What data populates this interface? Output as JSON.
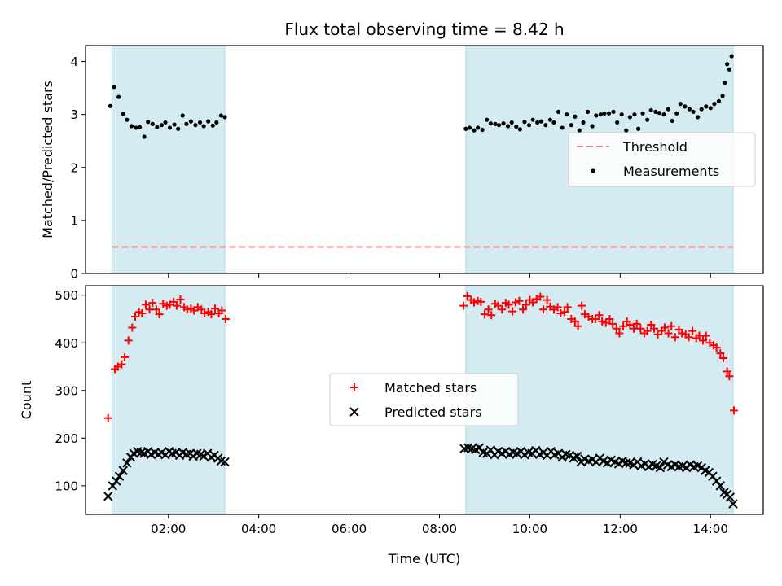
{
  "chart_data": [
    {
      "type": "scatter",
      "title": "Flux total observing time = 8.42 h",
      "xlabel": "",
      "ylabel": "Matched/Predicted stars",
      "xlim": [
        "00:10",
        "15:10"
      ],
      "ylim": [
        0,
        4.3
      ],
      "yticks": [
        0,
        1,
        2,
        3,
        4
      ],
      "xticks": [
        "02:00",
        "04:00",
        "06:00",
        "08:00",
        "10:00",
        "12:00",
        "14:00"
      ],
      "xtick_labels_shown": false,
      "grid": false,
      "legend_position": "center-right",
      "shaded_intervals": [
        [
          "00:45",
          "03:15"
        ],
        [
          "08:35",
          "14:30"
        ]
      ],
      "series": [
        {
          "name": "Threshold",
          "style": "dashed line",
          "color": "#f08080",
          "x": [
            "00:45",
            "14:30"
          ],
          "y": [
            0.5,
            0.5
          ]
        },
        {
          "name": "Measurements",
          "style": "dot",
          "color": "#000000",
          "x": [
            "00:43",
            "00:48",
            "00:54",
            "01:00",
            "01:05",
            "01:11",
            "01:17",
            "01:22",
            "01:28",
            "01:33",
            "01:39",
            "01:45",
            "01:51",
            "01:56",
            "02:02",
            "02:08",
            "02:13",
            "02:19",
            "02:24",
            "02:30",
            "02:36",
            "02:42",
            "02:47",
            "02:53",
            "02:59",
            "03:04",
            "03:10",
            "03:15",
            "08:35",
            "08:40",
            "08:46",
            "08:51",
            "08:57",
            "09:03",
            "09:08",
            "09:14",
            "09:19",
            "09:25",
            "09:31",
            "09:36",
            "09:42",
            "09:47",
            "09:53",
            "09:59",
            "10:04",
            "10:10",
            "10:15",
            "10:21",
            "10:27",
            "10:32",
            "10:38",
            "10:43",
            "10:49",
            "10:55",
            "11:00",
            "11:06",
            "11:11",
            "11:17",
            "11:23",
            "11:28",
            "11:34",
            "11:39",
            "11:45",
            "11:51",
            "11:56",
            "12:02",
            "12:08",
            "12:13",
            "12:19",
            "12:24",
            "12:30",
            "12:36",
            "12:41",
            "12:47",
            "12:52",
            "12:58",
            "13:04",
            "13:09",
            "13:15",
            "13:20",
            "13:26",
            "13:32",
            "13:37",
            "13:43",
            "13:48",
            "13:54",
            "14:00",
            "14:05",
            "14:11",
            "14:16",
            "14:19",
            "14:22",
            "14:25",
            "14:28"
          ],
          "y": [
            3.16,
            3.52,
            3.33,
            3.01,
            2.9,
            2.78,
            2.75,
            2.76,
            2.58,
            2.86,
            2.82,
            2.76,
            2.8,
            2.85,
            2.75,
            2.81,
            2.73,
            2.98,
            2.82,
            2.87,
            2.8,
            2.85,
            2.78,
            2.87,
            2.79,
            2.85,
            2.98,
            2.95,
            2.73,
            2.75,
            2.7,
            2.75,
            2.71,
            2.9,
            2.83,
            2.82,
            2.8,
            2.83,
            2.78,
            2.85,
            2.77,
            2.72,
            2.86,
            2.8,
            2.9,
            2.85,
            2.87,
            2.8,
            2.9,
            2.85,
            3.05,
            2.75,
            3.0,
            2.8,
            2.96,
            2.7,
            2.85,
            3.05,
            2.78,
            2.98,
            3.0,
            3.02,
            3.02,
            3.05,
            2.85,
            3.0,
            2.7,
            2.95,
            3.0,
            2.73,
            3.02,
            2.9,
            3.08,
            3.05,
            3.03,
            3.0,
            3.1,
            2.88,
            3.02,
            3.2,
            3.15,
            3.1,
            3.05,
            2.95,
            3.1,
            3.15,
            3.12,
            3.2,
            3.25,
            3.35,
            3.6,
            3.95,
            3.85,
            4.1
          ]
        }
      ]
    },
    {
      "type": "scatter",
      "title": "",
      "xlabel": "Time (UTC)",
      "ylabel": "Count",
      "xlim": [
        "00:10",
        "15:10"
      ],
      "ylim": [
        40,
        520
      ],
      "yticks": [
        100,
        200,
        300,
        400,
        500
      ],
      "xticks": [
        "02:00",
        "04:00",
        "06:00",
        "08:00",
        "10:00",
        "12:00",
        "14:00"
      ],
      "grid": false,
      "legend_position": "center",
      "shaded_intervals": [
        [
          "00:45",
          "03:15"
        ],
        [
          "08:35",
          "14:30"
        ]
      ],
      "series": [
        {
          "name": "Matched stars",
          "marker": "+",
          "color": "#ff0000",
          "x": [
            "00:40",
            "00:49",
            "00:53",
            "00:58",
            "01:02",
            "01:07",
            "01:12",
            "01:16",
            "01:21",
            "01:25",
            "01:30",
            "01:35",
            "01:39",
            "01:44",
            "01:48",
            "01:53",
            "01:58",
            "02:02",
            "02:07",
            "02:11",
            "02:16",
            "02:21",
            "02:25",
            "02:30",
            "02:34",
            "02:39",
            "02:44",
            "02:48",
            "02:53",
            "02:57",
            "03:02",
            "03:07",
            "03:11",
            "03:16",
            "08:32",
            "08:37",
            "08:42",
            "08:46",
            "08:51",
            "08:55",
            "09:00",
            "09:05",
            "09:09",
            "09:14",
            "09:18",
            "09:23",
            "09:28",
            "09:32",
            "09:37",
            "09:41",
            "09:46",
            "09:51",
            "09:55",
            "10:00",
            "10:04",
            "10:09",
            "10:14",
            "10:18",
            "10:23",
            "10:27",
            "10:32",
            "10:37",
            "10:41",
            "10:46",
            "10:50",
            "10:55",
            "11:00",
            "11:04",
            "11:09",
            "11:13",
            "11:18",
            "11:23",
            "11:27",
            "11:32",
            "11:36",
            "11:41",
            "11:46",
            "11:50",
            "11:55",
            "11:59",
            "12:04",
            "12:09",
            "12:13",
            "12:18",
            "12:22",
            "12:27",
            "12:32",
            "12:36",
            "12:41",
            "12:45",
            "12:50",
            "12:55",
            "12:59",
            "13:04",
            "13:08",
            "13:13",
            "13:18",
            "13:22",
            "13:27",
            "13:31",
            "13:36",
            "13:41",
            "13:45",
            "13:50",
            "13:54",
            "13:59",
            "14:04",
            "14:08",
            "14:13",
            "14:17",
            "14:22",
            "14:25",
            "14:31"
          ],
          "y": [
            242,
            345,
            350,
            355,
            370,
            405,
            432,
            455,
            465,
            462,
            480,
            470,
            484,
            470,
            460,
            482,
            478,
            480,
            486,
            478,
            491,
            475,
            470,
            472,
            468,
            475,
            470,
            462,
            465,
            460,
            472,
            462,
            468,
            450,
            478,
            498,
            490,
            485,
            488,
            486,
            460,
            470,
            458,
            482,
            478,
            470,
            484,
            480,
            466,
            485,
            488,
            470,
            480,
            490,
            485,
            492,
            497,
            470,
            490,
            476,
            470,
            475,
            462,
            465,
            475,
            450,
            445,
            435,
            478,
            460,
            455,
            450,
            450,
            458,
            445,
            442,
            450,
            440,
            430,
            420,
            435,
            445,
            438,
            430,
            440,
            430,
            420,
            425,
            438,
            430,
            418,
            425,
            432,
            420,
            435,
            412,
            428,
            420,
            418,
            412,
            425,
            410,
            415,
            405,
            415,
            400,
            395,
            390,
            378,
            368,
            340,
            330,
            258
          ]
        },
        {
          "name": "Predicted stars",
          "marker": "x",
          "color": "#000000",
          "x": [
            "00:40",
            "00:46",
            "00:51",
            "00:55",
            "01:00",
            "01:05",
            "01:10",
            "01:14",
            "01:19",
            "01:24",
            "01:28",
            "01:33",
            "01:37",
            "01:42",
            "01:47",
            "01:51",
            "01:56",
            "02:01",
            "02:05",
            "02:10",
            "02:15",
            "02:19",
            "02:24",
            "02:29",
            "02:33",
            "02:38",
            "02:43",
            "02:47",
            "02:52",
            "02:57",
            "03:01",
            "03:06",
            "03:10",
            "03:15",
            "08:33",
            "08:38",
            "08:43",
            "08:48",
            "08:53",
            "08:58",
            "09:03",
            "09:08",
            "09:13",
            "09:18",
            "09:23",
            "09:28",
            "09:33",
            "09:38",
            "09:43",
            "09:48",
            "09:53",
            "09:58",
            "10:03",
            "10:08",
            "10:13",
            "10:18",
            "10:23",
            "10:28",
            "10:33",
            "10:38",
            "10:43",
            "10:48",
            "10:53",
            "10:58",
            "11:03",
            "11:08",
            "11:13",
            "11:18",
            "11:23",
            "11:28",
            "11:33",
            "11:38",
            "11:43",
            "11:48",
            "11:53",
            "11:58",
            "12:03",
            "12:08",
            "12:13",
            "12:18",
            "12:23",
            "12:28",
            "12:33",
            "12:38",
            "12:43",
            "12:48",
            "12:53",
            "12:58",
            "13:03",
            "13:08",
            "13:13",
            "13:18",
            "13:23",
            "13:28",
            "13:33",
            "13:38",
            "13:43",
            "13:48",
            "13:53",
            "13:58",
            "14:03",
            "14:08",
            "14:13",
            "14:18",
            "14:22",
            "14:26",
            "14:30"
          ],
          "y": [
            78,
            100,
            110,
            120,
            132,
            148,
            160,
            168,
            172,
            170,
            168,
            172,
            166,
            170,
            166,
            170,
            165,
            172,
            168,
            170,
            164,
            170,
            166,
            168,
            162,
            168,
            166,
            162,
            168,
            160,
            164,
            158,
            152,
            150,
            178,
            180,
            178,
            176,
            180,
            170,
            168,
            175,
            165,
            172,
            168,
            172,
            166,
            170,
            168,
            172,
            165,
            170,
            168,
            174,
            166,
            170,
            164,
            172,
            165,
            168,
            160,
            166,
            164,
            158,
            162,
            150,
            156,
            152,
            155,
            150,
            158,
            152,
            148,
            154,
            150,
            146,
            152,
            148,
            148,
            144,
            150,
            142,
            146,
            140,
            145,
            142,
            138,
            150,
            144,
            140,
            144,
            140,
            142,
            138,
            144,
            140,
            142,
            138,
            132,
            128,
            120,
            110,
            100,
            86,
            82,
            76,
            62
          ]
        }
      ]
    }
  ]
}
